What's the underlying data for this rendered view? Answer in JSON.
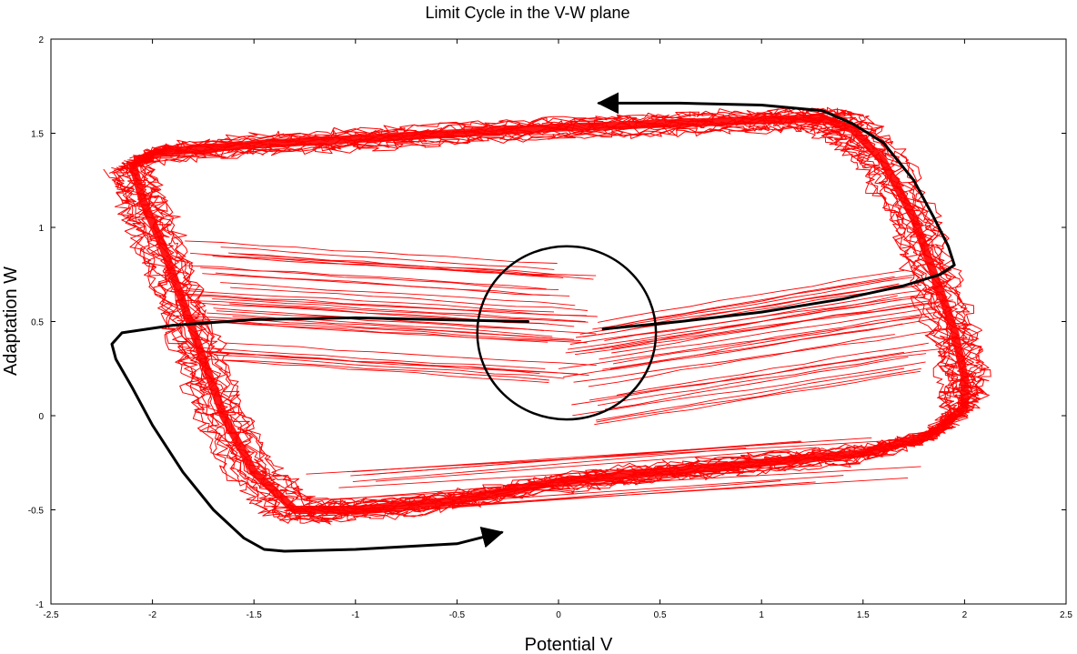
{
  "chart_data": {
    "type": "line",
    "title": "Limit Cycle in the V-W plane",
    "xlabel": "Potential V",
    "ylabel": "Adaptation W",
    "xlim": [
      -2.5,
      2.5
    ],
    "ylim": [
      -1,
      2
    ],
    "xticks": [
      -2.5,
      -2,
      -1.5,
      -1,
      -0.5,
      0,
      0.5,
      1,
      1.5,
      2,
      2.5
    ],
    "xtick_labels": [
      "-2.5",
      "-2",
      "-1.5",
      "-1",
      "-0.5",
      "0",
      "0.5",
      "1",
      "1.5",
      "2",
      "2.5"
    ],
    "yticks": [
      -1,
      -0.5,
      0,
      0.5,
      1,
      1.5,
      2
    ],
    "ytick_labels": [
      "-1",
      "-0.5",
      "0",
      "0.5",
      "1",
      "1.5",
      "2"
    ],
    "grid": false,
    "colors": {
      "noisy_trajectories": "#ff0000",
      "limit_cycle": "#000000"
    },
    "series": [
      {
        "style": "noisy-band",
        "x": [
          -2.1,
          -2.05,
          -1.95,
          -1.85,
          -1.75,
          -1.65,
          -1.5,
          -1.3,
          -1.0,
          -0.5,
          0.0,
          0.5,
          1.0,
          1.5,
          1.85,
          2.0,
          2.0,
          1.95,
          1.85,
          1.75,
          1.6,
          1.45,
          1.3,
          1.0,
          0.5,
          0.0,
          -0.5,
          -1.0,
          -1.5,
          -1.95,
          -2.1
        ],
        "y": [
          1.35,
          1.15,
          0.9,
          0.6,
          0.3,
          0.0,
          -0.3,
          -0.5,
          -0.5,
          -0.45,
          -0.35,
          -0.3,
          -0.25,
          -0.2,
          -0.1,
          0.05,
          0.2,
          0.45,
          0.75,
          1.05,
          1.35,
          1.52,
          1.58,
          1.57,
          1.55,
          1.53,
          1.5,
          1.47,
          1.44,
          1.4,
          1.35
        ]
      },
      {
        "style": "limit-cycle",
        "x": [
          -0.15,
          -0.6,
          -1.0,
          -1.5,
          -1.9,
          -2.15,
          -2.2,
          -2.18,
          -2.1,
          -2.0,
          -1.85,
          -1.7,
          -1.55,
          -1.45,
          -1.35,
          -1.0,
          -0.5,
          -0.28
        ],
        "y": [
          0.5,
          0.51,
          0.52,
          0.51,
          0.48,
          0.44,
          0.38,
          0.3,
          0.15,
          -0.05,
          -0.3,
          -0.5,
          -0.65,
          -0.71,
          -0.72,
          -0.71,
          -0.68,
          -0.62
        ]
      },
      {
        "style": "limit-cycle",
        "x": [
          0.22,
          0.6,
          1.0,
          1.4,
          1.7,
          1.88,
          1.95,
          1.92,
          1.85,
          1.75,
          1.6,
          1.45,
          1.3,
          1.0,
          0.6,
          0.2
        ],
        "y": [
          0.46,
          0.5,
          0.55,
          0.62,
          0.69,
          0.75,
          0.8,
          0.9,
          1.05,
          1.25,
          1.45,
          1.55,
          1.62,
          1.65,
          1.66,
          1.66
        ]
      }
    ],
    "annotations": [
      {
        "type": "circle",
        "center": [
          0.04,
          0.44
        ],
        "radius_x": 0.44,
        "radius_y": 0.46
      }
    ]
  }
}
